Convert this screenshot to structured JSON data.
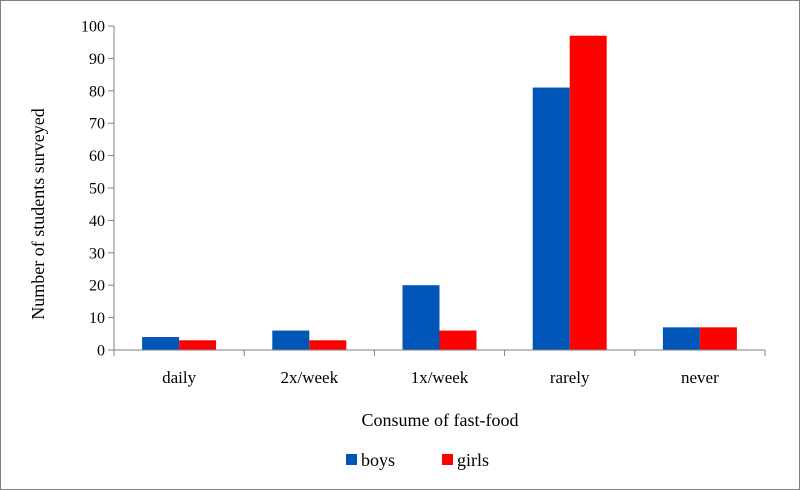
{
  "chart_data": {
    "type": "bar",
    "title": "",
    "xlabel": "Consume of  fast-food",
    "ylabel": "Number of students surveyed",
    "categories": [
      "daily",
      "2x/week",
      "1x/week",
      "rarely",
      "never"
    ],
    "series": [
      {
        "name": "boys",
        "color": "#0055b8",
        "values": [
          4,
          6,
          20,
          81,
          7
        ]
      },
      {
        "name": "girls",
        "color": "#ff0000",
        "values": [
          3,
          3,
          6,
          97,
          7
        ]
      }
    ],
    "ylim": [
      0,
      100
    ],
    "yticks": [
      0,
      10,
      20,
      30,
      40,
      50,
      60,
      70,
      80,
      90,
      100
    ],
    "grid": false,
    "legend_position": "bottom"
  }
}
